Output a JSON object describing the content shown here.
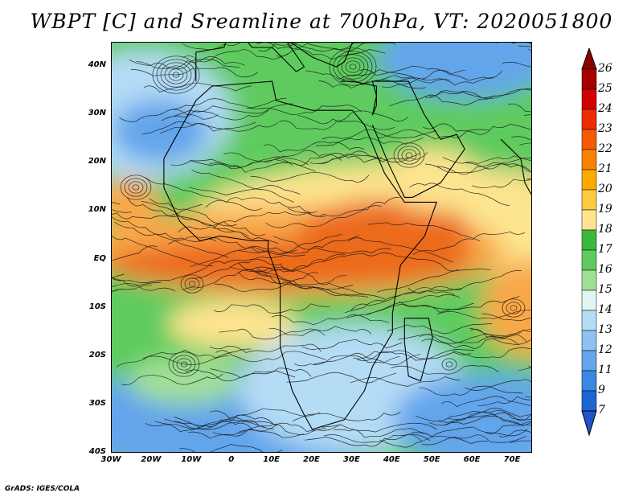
{
  "title": "WBPT [C] and Sreamline at 700hPa, VT: 2020051800",
  "credit": "GrADS: IGES/COLA",
  "axes": {
    "lat_labels": [
      "40N",
      "30N",
      "20N",
      "10N",
      "EQ",
      "10S",
      "20S",
      "30S",
      "40S"
    ],
    "lat_values": [
      40,
      30,
      20,
      10,
      0,
      -10,
      -20,
      -30,
      -40
    ],
    "lon_labels": [
      "30W",
      "20W",
      "10W",
      "0",
      "10E",
      "20E",
      "30E",
      "40E",
      "50E",
      "60E",
      "70E"
    ],
    "lon_values": [
      -30,
      -20,
      -10,
      0,
      10,
      20,
      30,
      40,
      50,
      60,
      70
    ],
    "lon_range": [
      -30,
      75
    ],
    "lat_range": [
      -40,
      45
    ]
  },
  "colorbar": {
    "labels": [
      "26",
      "25",
      "24",
      "23",
      "22",
      "21",
      "20",
      "19",
      "18",
      "17",
      "16",
      "15",
      "14",
      "13",
      "12",
      "11",
      "9",
      "7"
    ],
    "colors": [
      "#a50000",
      "#d20000",
      "#ec2d00",
      "#f55a00",
      "#fa8200",
      "#fcaa00",
      "#fdcb40",
      "#fde48e",
      "#3cb93c",
      "#5fcb5f",
      "#a0e096",
      "#dff5f0",
      "#b4dcf5",
      "#8cc3f0",
      "#64a5eb",
      "#3c87e1",
      "#1e64d2"
    ],
    "top_arrow_color": "#8b0000",
    "bottom_arrow_color": "#1e55c8"
  },
  "map_colors": {
    "equatorial_band": "#ec6a1e",
    "warm_zone": "#f9a84a",
    "mild_zone": "#fde48e",
    "green_zone": "#5fcb5f",
    "light_green": "#a0e096",
    "cool_zone": "#b4dcf5",
    "cold_zone": "#64a5eb"
  }
}
